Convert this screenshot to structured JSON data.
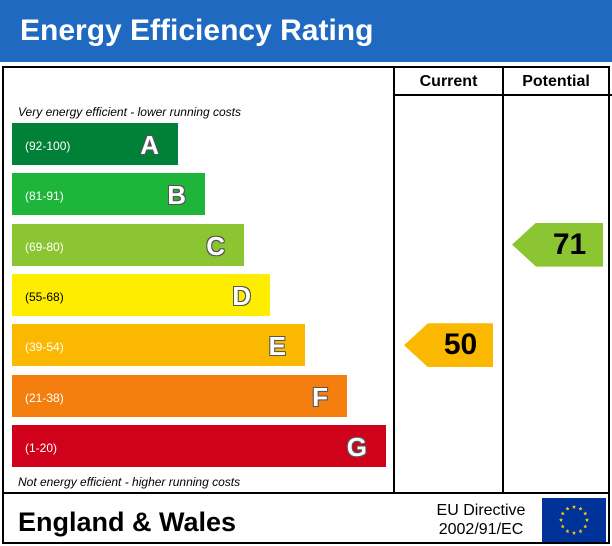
{
  "header": {
    "title": "Energy Efficiency Rating"
  },
  "columns": {
    "current": "Current",
    "potential": "Potential"
  },
  "notes": {
    "top": "Very energy efficient - lower running costs",
    "bottom": "Not energy efficient - higher running costs"
  },
  "chart_data": {
    "type": "bar",
    "title": "Energy Efficiency Rating",
    "bands": [
      {
        "letter": "A",
        "range": "(92-100)",
        "min": 92,
        "max": 100,
        "color": "#008137"
      },
      {
        "letter": "B",
        "range": "(81-91)",
        "min": 81,
        "max": 91,
        "color": "#1db53a"
      },
      {
        "letter": "C",
        "range": "(69-80)",
        "min": 69,
        "max": 80,
        "color": "#8bc532"
      },
      {
        "letter": "D",
        "range": "(55-68)",
        "min": 55,
        "max": 68,
        "color": "#ffed00"
      },
      {
        "letter": "E",
        "range": "(39-54)",
        "min": 39,
        "max": 54,
        "color": "#fbb800"
      },
      {
        "letter": "F",
        "range": "(21-38)",
        "min": 21,
        "max": 38,
        "color": "#f47e0e"
      },
      {
        "letter": "G",
        "range": "(1-20)",
        "min": 1,
        "max": 20,
        "color": "#d0021b"
      }
    ],
    "current": {
      "value": 50,
      "band": "E",
      "color": "#fbb800"
    },
    "potential": {
      "value": 71,
      "band": "C",
      "color": "#8bc532"
    }
  },
  "footer": {
    "region": "England & Wales",
    "directive_line1": "EU Directive",
    "directive_line2": "2002/91/EC",
    "flag_icon": "eu-flag-icon",
    "flag_color": "#003399",
    "star_color": "#ffcc00"
  }
}
